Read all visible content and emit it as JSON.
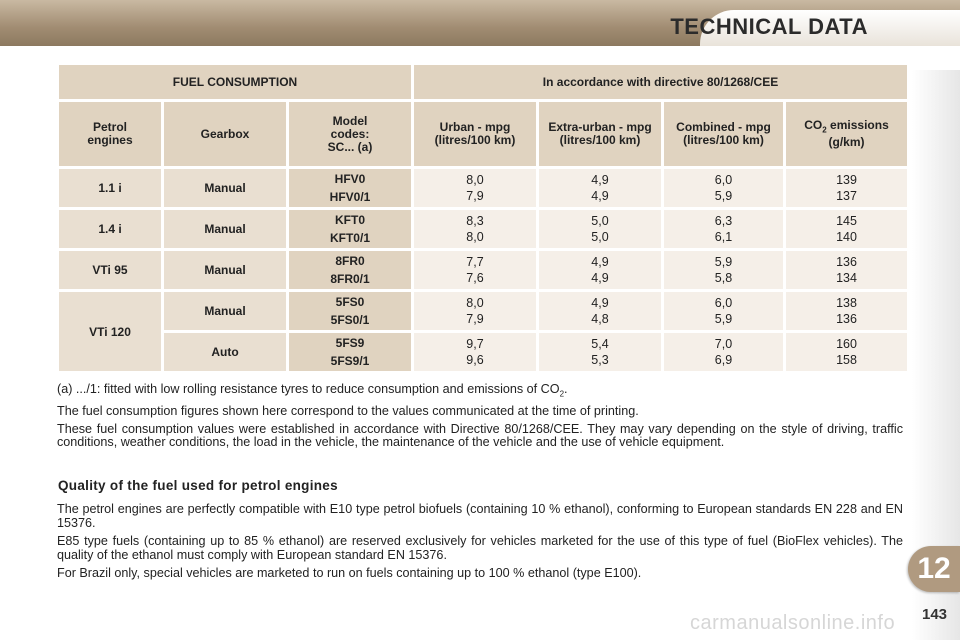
{
  "header": {
    "title": "TECHNICAL DATA"
  },
  "chapter": "12",
  "page_number": "143",
  "watermark": "carmanualsonline.info",
  "table": {
    "title_left": "FUEL CONSUMPTION",
    "title_right": "In accordance with directive 80/1268/CEE",
    "columns": {
      "engine": "Petrol engines",
      "gearbox": "Gearbox",
      "model": "Model codes: SC... (a)",
      "urban": "Urban - mpg (litres/100 km)",
      "extra": "Extra-urban - mpg (litres/100 km)",
      "combined": "Combined - mpg (litres/100 km)",
      "co2_prefix": "CO",
      "co2_sub": "2",
      "co2_suffix": " emissions (g/km)"
    },
    "rows": [
      {
        "engine": "1.1 i",
        "gearbox": "Manual",
        "code1": "HFV0",
        "code2": "HFV0/1",
        "urban1": "8,0",
        "urban2": "7,9",
        "extra1": "4,9",
        "extra2": "4,9",
        "comb1": "6,0",
        "comb2": "5,9",
        "co2_1": "139",
        "co2_2": "137"
      },
      {
        "engine": "1.4 i",
        "gearbox": "Manual",
        "code1": "KFT0",
        "code2": "KFT0/1",
        "urban1": "8,3",
        "urban2": "8,0",
        "extra1": "5,0",
        "extra2": "5,0",
        "comb1": "6,3",
        "comb2": "6,1",
        "co2_1": "145",
        "co2_2": "140"
      },
      {
        "engine": "VTi 95",
        "gearbox": "Manual",
        "code1": "8FR0",
        "code2": "8FR0/1",
        "urban1": "7,7",
        "urban2": "7,6",
        "extra1": "4,9",
        "extra2": "4,9",
        "comb1": "5,9",
        "comb2": "5,8",
        "co2_1": "136",
        "co2_2": "134"
      },
      {
        "engine": "VTi 120",
        "gearbox": "Manual",
        "code1": "5FS0",
        "code2": "5FS0/1",
        "urban1": "8,0",
        "urban2": "7,9",
        "extra1": "4,9",
        "extra2": "4,8",
        "comb1": "6,0",
        "comb2": "5,9",
        "co2_1": "138",
        "co2_2": "136"
      },
      {
        "engine": "",
        "gearbox": "Auto",
        "code1": "5FS9",
        "code2": "5FS9/1",
        "urban1": "9,7",
        "urban2": "9,6",
        "extra1": "5,4",
        "extra2": "5,3",
        "comb1": "7,0",
        "comb2": "6,9",
        "co2_1": "160",
        "co2_2": "158"
      }
    ]
  },
  "notes": {
    "footnote_prefix": "(a) .../1: fitted with low rolling resistance tyres to reduce consumption and emissions of CO",
    "footnote_sub": "2",
    "footnote_suffix": ".",
    "note1": "The fuel consumption figures shown here correspond to the values communicated at the time of printing.",
    "note2": "These fuel consumption values were established in accordance with Directive 80/1268/CEE. They may vary depending on the style of driving, traffic conditions, weather conditions, the load in the vehicle, the maintenance of the vehicle and the use of vehicle equipment."
  },
  "section": {
    "title": "Quality of the fuel used for petrol engines",
    "p1": "The petrol engines are perfectly compatible with E10 type petrol biofuels (containing 10 % ethanol), conforming to European standards EN 228 and EN 15376.",
    "p2": "E85 type fuels (containing up to 85 % ethanol) are reserved exclusively for vehicles marketed for the use of this type of fuel (BioFlex vehicles). The quality of the ethanol must comply with European standard EN 15376.",
    "p3": "For Brazil only, special vehicles are marketed to run on fuels containing up to 100 % ethanol (type E100)."
  }
}
